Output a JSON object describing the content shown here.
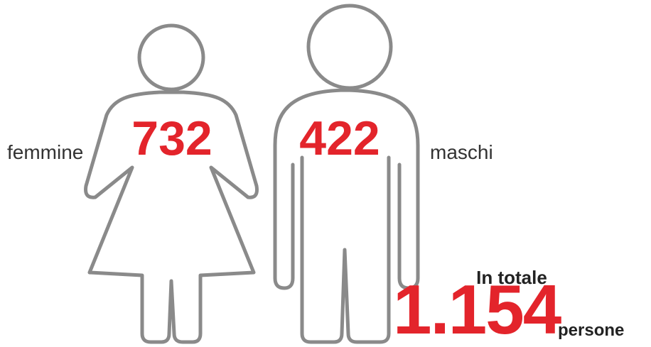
{
  "female": {
    "label": "femmine",
    "count": "732"
  },
  "male": {
    "label": "maschi",
    "count": "422"
  },
  "total": {
    "caption": "In totale",
    "count": "1.154",
    "unit": "persone"
  }
}
